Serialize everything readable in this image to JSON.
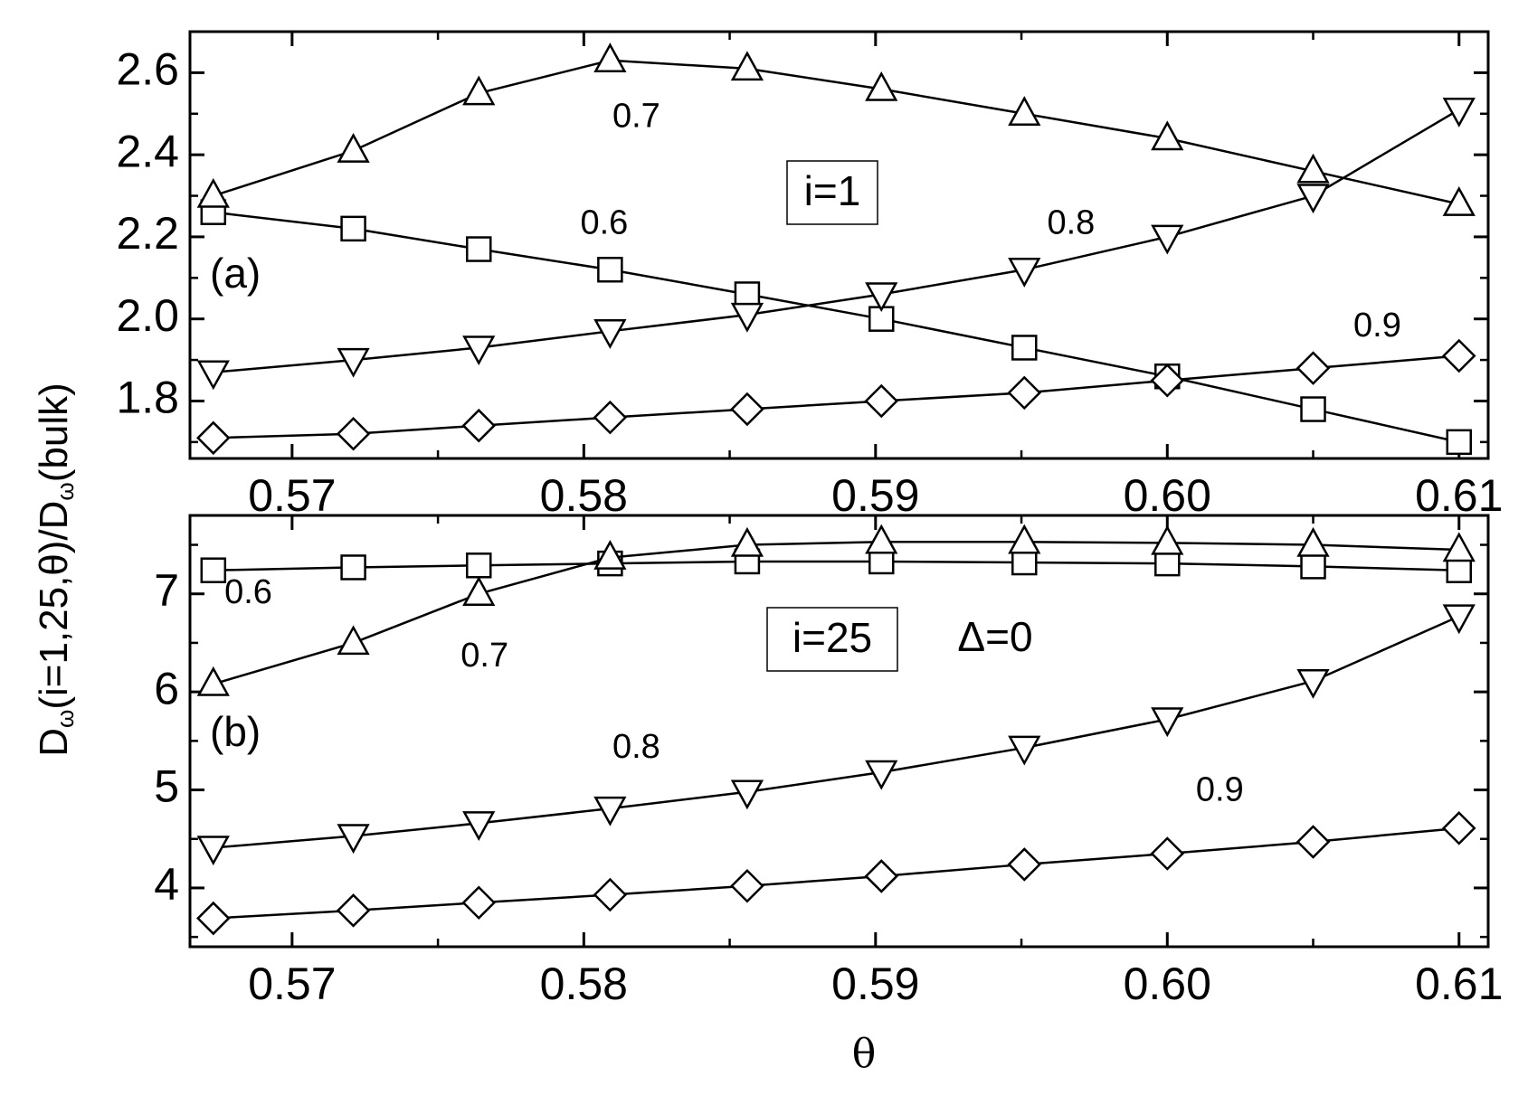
{
  "chart_data": [
    {
      "type": "line",
      "panel": "(a)",
      "boxed_label": "i=1",
      "xlim": [
        0.5665,
        0.611
      ],
      "ylim": [
        1.66,
        2.7
      ],
      "xticks": [
        "0.57",
        "0.58",
        "0.59",
        "0.60",
        "0.61"
      ],
      "xtick_values": [
        0.57,
        0.58,
        0.59,
        0.6,
        0.61
      ],
      "yticks": [
        "1.8",
        "2.0",
        "2.2",
        "2.4",
        "2.6"
      ],
      "ytick_values": [
        1.8,
        2.0,
        2.2,
        2.4,
        2.6
      ],
      "x": [
        0.5673,
        0.5721,
        0.5764,
        0.5809,
        0.5856,
        0.5902,
        0.5951,
        0.6,
        0.605,
        0.61
      ],
      "series": [
        {
          "name": "0.6",
          "marker": "square",
          "values": [
            2.26,
            2.22,
            2.17,
            2.12,
            2.06,
            2.0,
            1.93,
            1.86,
            1.78,
            1.7
          ]
        },
        {
          "name": "0.7",
          "marker": "triangle-up",
          "values": [
            2.3,
            2.41,
            2.55,
            2.63,
            2.61,
            2.56,
            2.5,
            2.44,
            2.36,
            2.28
          ]
        },
        {
          "name": "0.8",
          "marker": "triangle-down",
          "values": [
            1.87,
            1.9,
            1.93,
            1.97,
            2.01,
            2.06,
            2.12,
            2.2,
            2.3,
            2.51
          ]
        },
        {
          "name": "0.9",
          "marker": "diamond",
          "values": [
            1.71,
            1.72,
            1.74,
            1.76,
            1.78,
            1.8,
            1.82,
            1.85,
            1.88,
            1.91
          ]
        }
      ],
      "annotations": [
        {
          "text": "0.7",
          "x": 0.5818,
          "y": 2.49
        },
        {
          "text": "0.6",
          "x": 0.5807,
          "y": 2.23
        },
        {
          "text": "0.8",
          "x": 0.5967,
          "y": 2.23
        },
        {
          "text": "0.9",
          "x": 0.6072,
          "y": 1.98
        }
      ]
    },
    {
      "type": "line",
      "panel": "(b)",
      "boxed_label": "i=25",
      "extra_label": "Δ=0",
      "xlim": [
        0.5665,
        0.611
      ],
      "ylim": [
        3.4,
        7.8
      ],
      "xticks": [
        "0.57",
        "0.58",
        "0.59",
        "0.60",
        "0.61"
      ],
      "xtick_values": [
        0.57,
        0.58,
        0.59,
        0.6,
        0.61
      ],
      "yticks": [
        "4",
        "5",
        "6",
        "7"
      ],
      "ytick_values": [
        4,
        5,
        6,
        7
      ],
      "x": [
        0.5673,
        0.5721,
        0.5764,
        0.5809,
        0.5856,
        0.5902,
        0.5951,
        0.6,
        0.605,
        0.61
      ],
      "series": [
        {
          "name": "0.6",
          "marker": "square",
          "values": [
            7.24,
            7.27,
            7.29,
            7.31,
            7.33,
            7.33,
            7.32,
            7.31,
            7.28,
            7.24
          ]
        },
        {
          "name": "0.7",
          "marker": "triangle-up",
          "values": [
            6.08,
            6.5,
            7.0,
            7.37,
            7.5,
            7.53,
            7.53,
            7.52,
            7.5,
            7.45
          ]
        },
        {
          "name": "0.8",
          "marker": "triangle-down",
          "values": [
            4.41,
            4.53,
            4.66,
            4.81,
            4.98,
            5.18,
            5.43,
            5.72,
            6.11,
            6.77
          ]
        },
        {
          "name": "0.9",
          "marker": "diamond",
          "values": [
            3.69,
            3.77,
            3.85,
            3.93,
            4.02,
            4.12,
            4.24,
            4.35,
            4.47,
            4.61
          ]
        }
      ],
      "annotations": [
        {
          "text": "0.6",
          "x": 0.5685,
          "y": 7.0
        },
        {
          "text": "0.7",
          "x": 0.5766,
          "y": 6.35
        },
        {
          "text": "0.8",
          "x": 0.5818,
          "y": 5.42
        },
        {
          "text": "0.9",
          "x": 0.6018,
          "y": 4.98
        }
      ]
    }
  ],
  "ylabel": "Dω(i=1,25,θ)/Dω(bulk)",
  "xlabel": "θ"
}
